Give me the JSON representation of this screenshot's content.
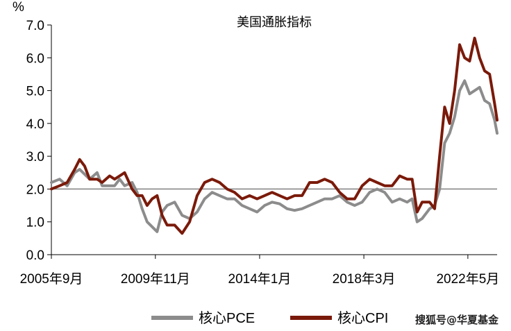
{
  "chart_data": {
    "type": "line",
    "title": "美国通胀指标",
    "unit": "%",
    "xlabel": "",
    "ylabel": "",
    "ylim": [
      0,
      7
    ],
    "yticks": [
      "0.0",
      "1.0",
      "2.0",
      "3.0",
      "4.0",
      "5.0",
      "6.0",
      "7.0"
    ],
    "xlim": [
      2005.67,
      2023.5
    ],
    "xticks": [
      {
        "label": "2005年9月",
        "t": 2005.67
      },
      {
        "label": "2009年11月",
        "t": 2009.83
      },
      {
        "label": "2014年1月",
        "t": 2014.0
      },
      {
        "label": "2018年3月",
        "t": 2018.17
      },
      {
        "label": "2022年5月",
        "t": 2022.33
      }
    ],
    "reference_line": {
      "y": 2.0,
      "color": "#808080"
    },
    "legend_position": "bottom",
    "series": [
      {
        "name": "核心PCE",
        "color": "#8c8c8c",
        "points": [
          [
            2005.67,
            2.2
          ],
          [
            2006.0,
            2.3
          ],
          [
            2006.3,
            2.1
          ],
          [
            2006.6,
            2.5
          ],
          [
            2006.8,
            2.6
          ],
          [
            2007.0,
            2.45
          ],
          [
            2007.2,
            2.3
          ],
          [
            2007.5,
            2.5
          ],
          [
            2007.7,
            2.1
          ],
          [
            2008.0,
            2.1
          ],
          [
            2008.2,
            2.1
          ],
          [
            2008.4,
            2.3
          ],
          [
            2008.6,
            2.1
          ],
          [
            2008.9,
            2.2
          ],
          [
            2009.1,
            1.9
          ],
          [
            2009.3,
            1.4
          ],
          [
            2009.5,
            1.0
          ],
          [
            2009.7,
            0.85
          ],
          [
            2009.9,
            0.7
          ],
          [
            2010.1,
            1.3
          ],
          [
            2010.3,
            1.5
          ],
          [
            2010.6,
            1.6
          ],
          [
            2010.9,
            1.2
          ],
          [
            2011.2,
            1.1
          ],
          [
            2011.5,
            1.3
          ],
          [
            2011.8,
            1.7
          ],
          [
            2012.1,
            1.9
          ],
          [
            2012.4,
            1.8
          ],
          [
            2012.7,
            1.7
          ],
          [
            2013.0,
            1.7
          ],
          [
            2013.3,
            1.5
          ],
          [
            2013.6,
            1.4
          ],
          [
            2013.9,
            1.3
          ],
          [
            2014.2,
            1.5
          ],
          [
            2014.5,
            1.6
          ],
          [
            2014.8,
            1.55
          ],
          [
            2015.1,
            1.4
          ],
          [
            2015.4,
            1.35
          ],
          [
            2015.7,
            1.4
          ],
          [
            2016.0,
            1.5
          ],
          [
            2016.3,
            1.6
          ],
          [
            2016.6,
            1.7
          ],
          [
            2016.9,
            1.7
          ],
          [
            2017.2,
            1.8
          ],
          [
            2017.5,
            1.6
          ],
          [
            2017.8,
            1.5
          ],
          [
            2018.1,
            1.6
          ],
          [
            2018.4,
            1.9
          ],
          [
            2018.7,
            2.0
          ],
          [
            2019.0,
            1.9
          ],
          [
            2019.3,
            1.6
          ],
          [
            2019.6,
            1.7
          ],
          [
            2019.9,
            1.6
          ],
          [
            2020.1,
            1.7
          ],
          [
            2020.3,
            1.0
          ],
          [
            2020.5,
            1.1
          ],
          [
            2020.8,
            1.4
          ],
          [
            2021.0,
            1.5
          ],
          [
            2021.2,
            2.0
          ],
          [
            2021.4,
            3.4
          ],
          [
            2021.6,
            3.7
          ],
          [
            2021.8,
            4.2
          ],
          [
            2022.0,
            5.0
          ],
          [
            2022.2,
            5.3
          ],
          [
            2022.4,
            4.9
          ],
          [
            2022.6,
            5.0
          ],
          [
            2022.8,
            5.1
          ],
          [
            2023.0,
            4.7
          ],
          [
            2023.2,
            4.6
          ],
          [
            2023.4,
            4.1
          ],
          [
            2023.5,
            3.7
          ]
        ]
      },
      {
        "name": "核心CPI",
        "color": "#7a1a0a",
        "points": [
          [
            2005.67,
            2.0
          ],
          [
            2006.0,
            2.1
          ],
          [
            2006.3,
            2.2
          ],
          [
            2006.6,
            2.6
          ],
          [
            2006.8,
            2.9
          ],
          [
            2007.0,
            2.7
          ],
          [
            2007.2,
            2.3
          ],
          [
            2007.5,
            2.3
          ],
          [
            2007.7,
            2.2
          ],
          [
            2008.0,
            2.4
          ],
          [
            2008.2,
            2.3
          ],
          [
            2008.4,
            2.4
          ],
          [
            2008.6,
            2.5
          ],
          [
            2008.9,
            2.0
          ],
          [
            2009.1,
            1.8
          ],
          [
            2009.3,
            1.8
          ],
          [
            2009.5,
            1.5
          ],
          [
            2009.7,
            1.7
          ],
          [
            2009.9,
            1.8
          ],
          [
            2010.1,
            1.2
          ],
          [
            2010.3,
            0.9
          ],
          [
            2010.6,
            0.9
          ],
          [
            2010.9,
            0.65
          ],
          [
            2011.2,
            1.0
          ],
          [
            2011.5,
            1.8
          ],
          [
            2011.8,
            2.2
          ],
          [
            2012.1,
            2.3
          ],
          [
            2012.4,
            2.2
          ],
          [
            2012.7,
            2.0
          ],
          [
            2013.0,
            1.9
          ],
          [
            2013.3,
            1.7
          ],
          [
            2013.6,
            1.8
          ],
          [
            2013.9,
            1.7
          ],
          [
            2014.2,
            1.8
          ],
          [
            2014.5,
            1.9
          ],
          [
            2014.8,
            1.8
          ],
          [
            2015.1,
            1.7
          ],
          [
            2015.4,
            1.8
          ],
          [
            2015.7,
            1.8
          ],
          [
            2016.0,
            2.2
          ],
          [
            2016.3,
            2.2
          ],
          [
            2016.6,
            2.3
          ],
          [
            2016.9,
            2.2
          ],
          [
            2017.2,
            1.9
          ],
          [
            2017.5,
            1.7
          ],
          [
            2017.8,
            1.7
          ],
          [
            2018.1,
            2.1
          ],
          [
            2018.4,
            2.3
          ],
          [
            2018.7,
            2.2
          ],
          [
            2019.0,
            2.1
          ],
          [
            2019.3,
            2.1
          ],
          [
            2019.6,
            2.4
          ],
          [
            2019.9,
            2.3
          ],
          [
            2020.1,
            2.3
          ],
          [
            2020.3,
            1.3
          ],
          [
            2020.5,
            1.6
          ],
          [
            2020.8,
            1.6
          ],
          [
            2021.0,
            1.4
          ],
          [
            2021.2,
            3.0
          ],
          [
            2021.4,
            4.5
          ],
          [
            2021.6,
            4.0
          ],
          [
            2021.8,
            5.0
          ],
          [
            2022.0,
            6.4
          ],
          [
            2022.2,
            6.0
          ],
          [
            2022.4,
            5.9
          ],
          [
            2022.6,
            6.6
          ],
          [
            2022.8,
            6.0
          ],
          [
            2023.0,
            5.6
          ],
          [
            2023.2,
            5.5
          ],
          [
            2023.4,
            4.6
          ],
          [
            2023.5,
            4.1
          ]
        ]
      }
    ]
  },
  "watermark": "搜狐号@华夏基金"
}
